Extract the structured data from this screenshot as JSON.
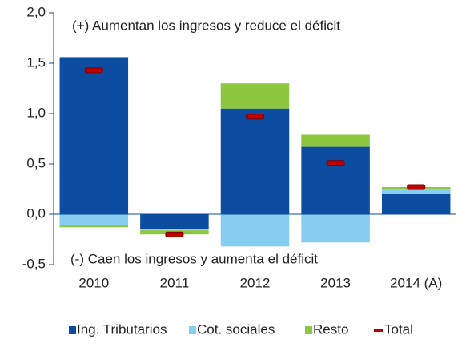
{
  "chart_data": {
    "type": "stacked_bar",
    "categories": [
      "2010",
      "2011",
      "2012",
      "2013",
      "2014 (A)"
    ],
    "series": [
      {
        "name": "Ing. Tributarios",
        "color": "#0c4da2",
        "values": [
          1.56,
          -0.15,
          1.05,
          0.67,
          0.2
        ]
      },
      {
        "name": "Cot. sociales",
        "color": "#87cdef",
        "values": [
          -0.11,
          -0.01,
          -0.32,
          -0.28,
          0.05
        ]
      },
      {
        "name": "Resto",
        "color": "#8dc63f",
        "values": [
          -0.02,
          -0.04,
          0.25,
          0.12,
          0.02
        ]
      },
      {
        "name": "Total",
        "color": "#c00000",
        "style": "marker",
        "values": [
          1.43,
          -0.2,
          0.97,
          0.51,
          0.27
        ]
      }
    ],
    "ylim": [
      -0.5,
      2.0
    ],
    "yticks": [
      {
        "value": -0.5,
        "label": "-0,5"
      },
      {
        "value": 0,
        "label": "0,0"
      },
      {
        "value": 0.5,
        "label": "0,5"
      },
      {
        "value": 1.0,
        "label": "1,0"
      },
      {
        "value": 1.5,
        "label": "1,5"
      },
      {
        "value": 2.0,
        "label": "2,0"
      }
    ],
    "annotations": [
      "(+) Aumentan los ingresos y reduce el déficit",
      "(-) Caen los ingresos y aumenta el déficit"
    ],
    "legend": "bottom"
  }
}
